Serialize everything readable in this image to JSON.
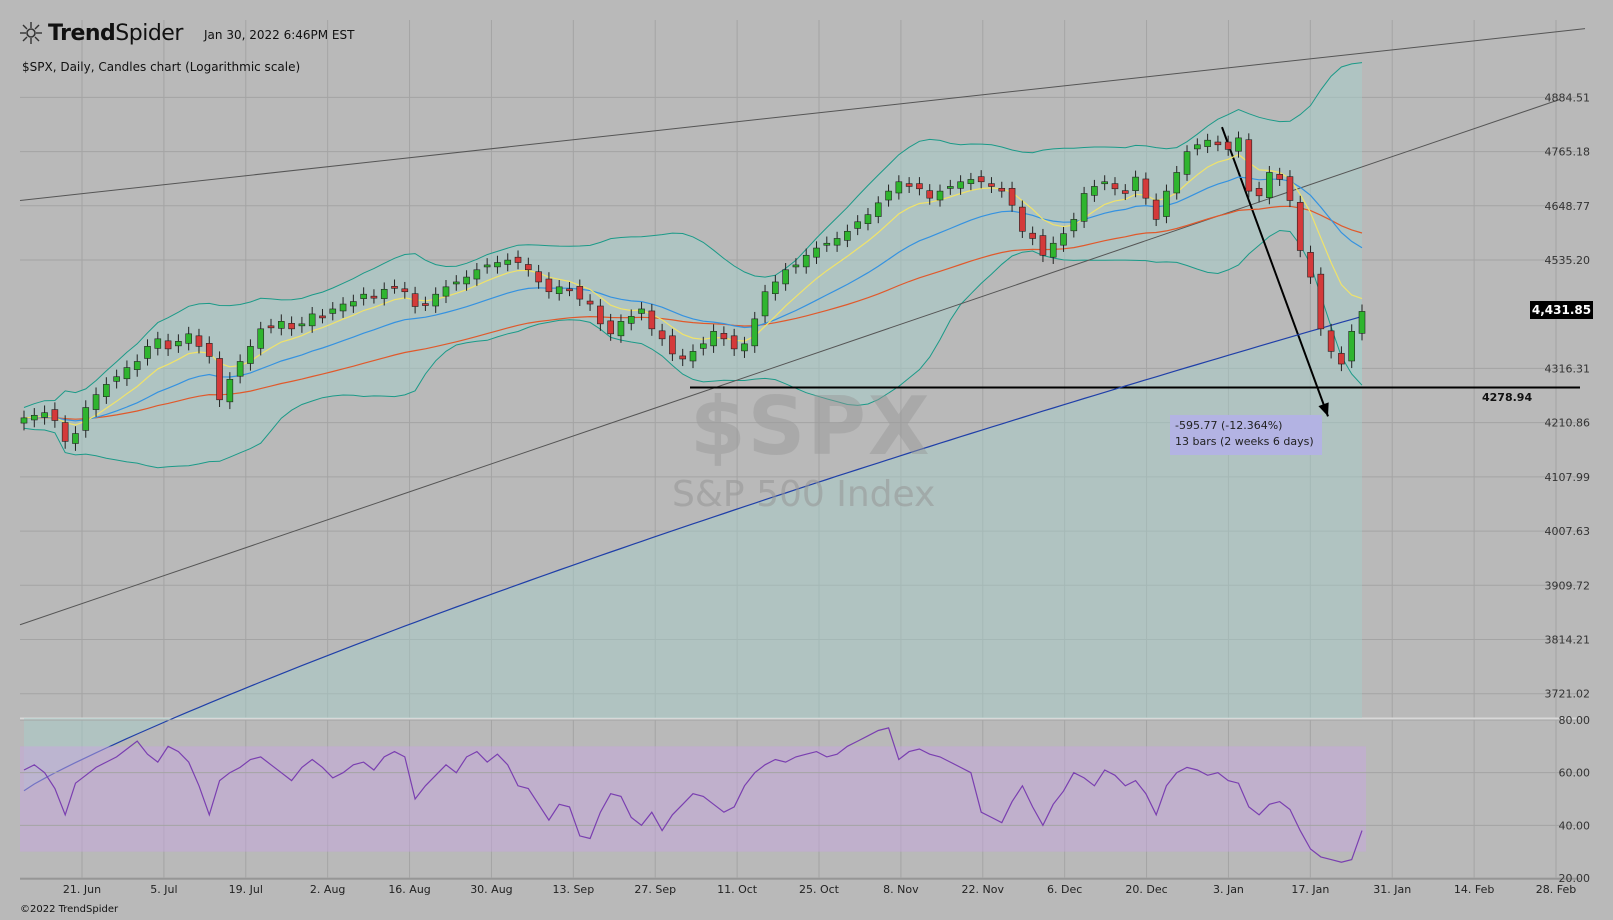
{
  "header": {
    "brand_bold": "Trend",
    "brand_light": "Spider",
    "timestamp": "Jan 30, 2022 6:46PM EST",
    "subtitle": "$SPX, Daily, Candles chart (Logarithmic scale)",
    "copyright": "©2022 TrendSpider"
  },
  "watermark": {
    "symbol": "$SPX",
    "name": "S&P 500 Index"
  },
  "annotations": {
    "last_price": "4,431.85",
    "support_level": "4278.94",
    "measure_line1": "-595.77 (-12.364%)",
    "measure_line2": "13 bars (2 weeks 6 days)"
  },
  "colors": {
    "background": "#b9b9b9",
    "grid": "#a4a4a4",
    "up_candle": "#2fb52f",
    "down_candle": "#d43a3a",
    "bollinger": "#1b9a88",
    "bollinger_fill": "#a6d0cc",
    "ema_fast": "#f0e36a",
    "ema_mid": "#3592e0",
    "ema_50": "#e0592b",
    "ema_200": "#1f3fa8",
    "rsi": "#7a3fb0",
    "rsi_band": "#c7a8e0"
  },
  "chart_data": [
    {
      "type": "candlestick",
      "symbol": "$SPX",
      "scale": "log",
      "ylim": [
        3680,
        5060
      ],
      "y_ticks": [
        "4884.51",
        "4765.18",
        "4648.77",
        "4535.20",
        "4316.31",
        "4210.86",
        "4107.99",
        "4007.63",
        "3909.72",
        "3814.21",
        "3721.02"
      ],
      "x_ticks": [
        "21. Jun",
        "5. Jul",
        "19. Jul",
        "2. Aug",
        "16. Aug",
        "30. Aug",
        "13. Sep",
        "27. Sep",
        "11. Oct",
        "25. Oct",
        "8. Nov",
        "22. Nov",
        "6. Dec",
        "20. Dec",
        "3. Jan",
        "17. Jan",
        "31. Jan",
        "14. Feb",
        "28. Feb"
      ],
      "close_path": [
        4220,
        4225,
        4230,
        4215,
        4175,
        4190,
        4240,
        4265,
        4285,
        4300,
        4318,
        4330,
        4360,
        4375,
        4355,
        4370,
        4385,
        4360,
        4340,
        4255,
        4295,
        4330,
        4360,
        4395,
        4400,
        4410,
        4395,
        4405,
        4425,
        4420,
        4435,
        4445,
        4450,
        4465,
        4460,
        4475,
        4480,
        4470,
        4440,
        4445,
        4465,
        4480,
        4490,
        4500,
        4515,
        4525,
        4530,
        4535,
        4530,
        4515,
        4490,
        4470,
        4480,
        4475,
        4455,
        4445,
        4405,
        4385,
        4410,
        4420,
        4435,
        4395,
        4375,
        4345,
        4335,
        4350,
        4365,
        4390,
        4375,
        4355,
        4365,
        4415,
        4470,
        4490,
        4515,
        4525,
        4545,
        4560,
        4570,
        4580,
        4595,
        4615,
        4630,
        4655,
        4680,
        4700,
        4690,
        4685,
        4665,
        4680,
        4690,
        4700,
        4705,
        4700,
        4690,
        4680,
        4650,
        4595,
        4580,
        4545,
        4570,
        4590,
        4620,
        4675,
        4690,
        4700,
        4685,
        4675,
        4710,
        4665,
        4620,
        4680,
        4720,
        4765,
        4780,
        4790,
        4780,
        4770,
        4795,
        4680,
        4670,
        4720,
        4705,
        4660,
        4555,
        4500,
        4395,
        4350,
        4325,
        4390,
        4430
      ],
      "horizontal_level": 4278.94,
      "measure": {
        "from_value": 4818.6,
        "to_value": 4222.9,
        "change": -595.77,
        "change_pct": -12.364,
        "bars": 13
      }
    },
    {
      "type": "line",
      "name": "RSI",
      "ylim": [
        20,
        80
      ],
      "y_ticks": [
        "80.00",
        "60.00",
        "40.00",
        "20.00"
      ],
      "band": [
        30,
        70
      ],
      "values": [
        61,
        63,
        60,
        54,
        44,
        56,
        59,
        62,
        64,
        66,
        69,
        72,
        67,
        64,
        70,
        68,
        64,
        55,
        44,
        57,
        60,
        62,
        65,
        66,
        63,
        60,
        57,
        62,
        65,
        62,
        58,
        60,
        63,
        64,
        61,
        66,
        68,
        66,
        50,
        55,
        59,
        63,
        60,
        66,
        68,
        64,
        67,
        63,
        55,
        54,
        48,
        42,
        48,
        47,
        36,
        35,
        45,
        52,
        51,
        43,
        40,
        45,
        38,
        44,
        48,
        52,
        51,
        48,
        45,
        47,
        55,
        60,
        63,
        65,
        64,
        66,
        67,
        68,
        66,
        67,
        70,
        72,
        74,
        76,
        77,
        65,
        68,
        69,
        67,
        66,
        64,
        62,
        60,
        45,
        43,
        41,
        49,
        55,
        47,
        40,
        48,
        53,
        60,
        58,
        55,
        61,
        59,
        55,
        57,
        52,
        44,
        55,
        60,
        62,
        61,
        59,
        60,
        57,
        56,
        47,
        44,
        48,
        49,
        46,
        38,
        31,
        28,
        27,
        26,
        27,
        38
      ]
    }
  ]
}
